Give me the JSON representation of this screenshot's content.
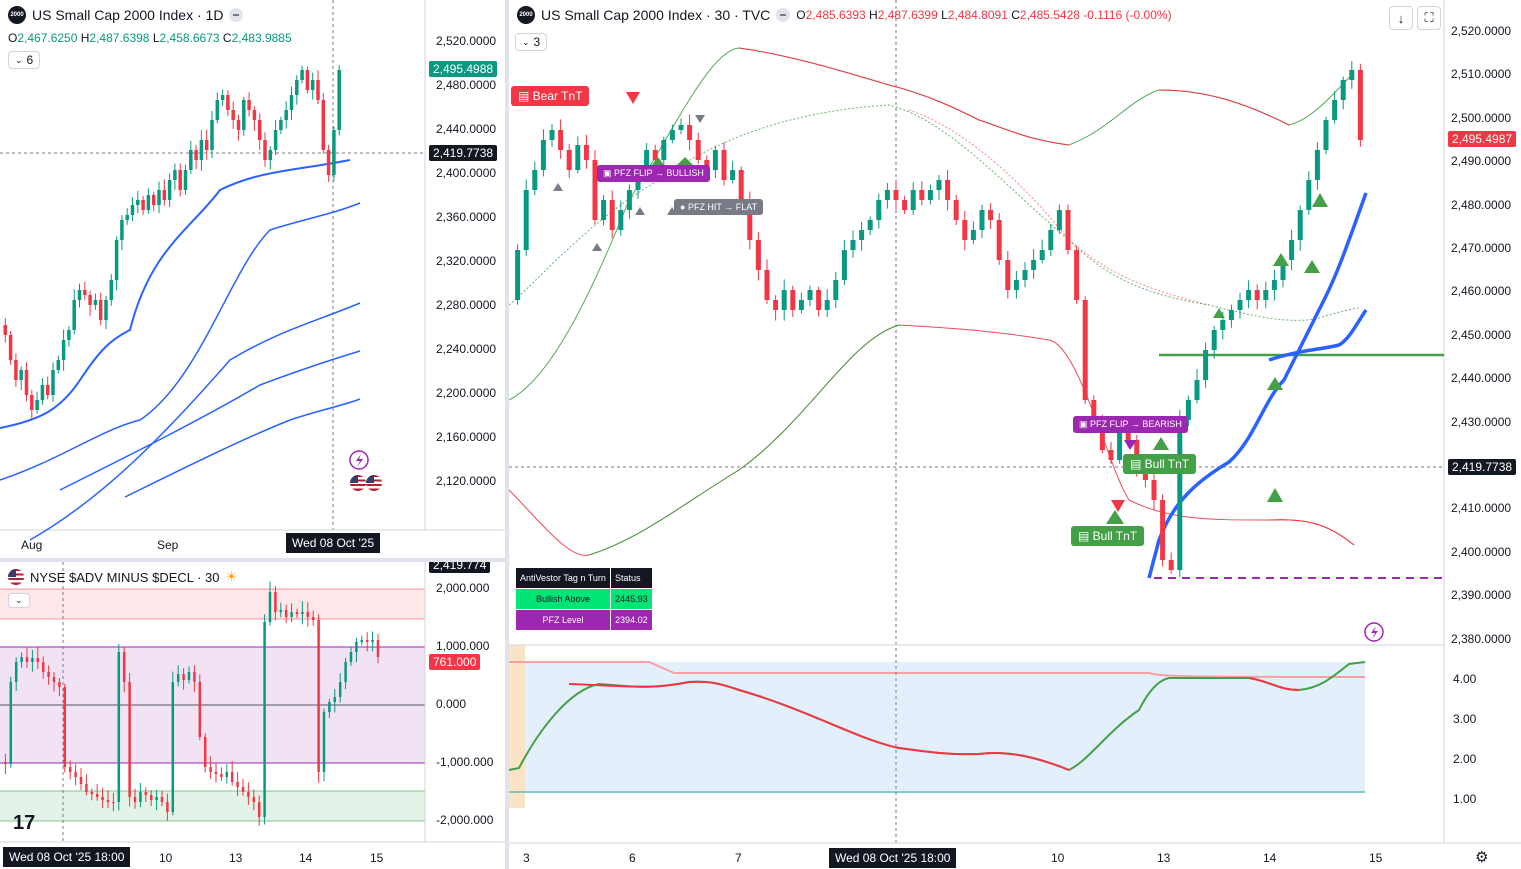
{
  "colors": {
    "up": "#089981",
    "down": "#f23645",
    "bull_green": "#43a047",
    "blue": "#2962ff",
    "purple": "#9c27b0"
  },
  "daily": {
    "title": "US Small Cap 2000 Index · 1D",
    "logo": "2000",
    "ohlc": {
      "o_label": "O",
      "o": "2,467.6250",
      "h_label": "H",
      "h": "2,487.6398",
      "l_label": "L",
      "l": "2,458.6673",
      "c_label": "C",
      "c": "2,483.9885"
    },
    "indicator_count": "6",
    "price_ticks": [
      "2,520.0000",
      "2,480.0000",
      "2,440.0000",
      "2,400.0000",
      "2,360.0000",
      "2,320.0000",
      "2,280.0000",
      "2,240.0000",
      "2,200.0000",
      "2,160.0000",
      "2,120.0000"
    ],
    "last_price": "2,495.4988",
    "crosshair_price": "2,419.7738",
    "time_labels": [
      "Aug",
      "Sep"
    ],
    "crosshair_time": "Wed 08 Oct '25"
  },
  "breadth": {
    "title": "NYSE $ADV MINUS $DECL · 30",
    "ticks": [
      "2,000.000",
      "1,000.000",
      "0.000",
      "-1,000.000",
      "-2,000.000"
    ],
    "top_tag": "2,419.774",
    "last_value": "761.000",
    "time_labels": [
      "10",
      "13",
      "14",
      "15"
    ],
    "crosshair_time": "Wed 08 Oct '25   18:00",
    "logo_text": "17"
  },
  "main": {
    "title": "US Small Cap 2000 Index · 30 · TVC",
    "logo": "2000",
    "ohlc": {
      "o_label": "O",
      "o": "2,485.6393",
      "h_label": "H",
      "h": "2,487.6399",
      "l_label": "L",
      "l": "2,484.8091",
      "c_label": "C",
      "c": "2,485.5428",
      "chg": "-0.1116 (-0.00%)"
    },
    "indicator_count": "3",
    "price_ticks": [
      "2,520.0000",
      "2,510.0000",
      "2,500.0000",
      "2,490.0000",
      "2,480.0000",
      "2,470.0000",
      "2,460.0000",
      "2,450.0000",
      "2,440.0000",
      "2,430.0000",
      "2,420.0000",
      "2,410.0000",
      "2,400.0000",
      "2,390.0000",
      "2,380.0000"
    ],
    "osc_ticks": [
      "4.00",
      "3.00",
      "2.00",
      "1.00"
    ],
    "last_price": "2,495.4987",
    "crosshair_price": "2,419.7738",
    "time_labels": [
      "3",
      "6",
      "7",
      "10",
      "13",
      "14",
      "15"
    ],
    "crosshair_time": "Wed 08 Oct '25   18:00",
    "labels": {
      "bear_tnt": "Bear TnT",
      "pfz_flip_bullish": "PFZ FLIP → BULLISH",
      "pfz_hit_flat": "PFZ HIT → FLAT",
      "pfz_flip_bearish": "PFZ FLIP → BEARISH",
      "bull_tnt_1": "Bull TnT",
      "bull_tnt_2": "Bull TnT"
    },
    "table": {
      "header": [
        "AntiVestor Tag n Turn",
        "Status"
      ],
      "rows": [
        {
          "name": "Bullish Above",
          "value": "2445.93"
        },
        {
          "name": "PFZ Level",
          "value": "2394.02"
        }
      ]
    }
  }
}
